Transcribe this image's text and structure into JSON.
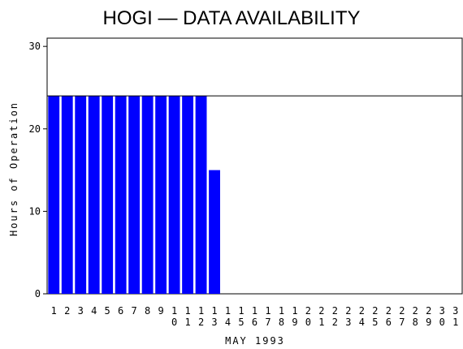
{
  "chart_data": {
    "type": "bar",
    "title": "HOGI — DATA AVAILABILITY",
    "x_label": "MAY 1993",
    "y_label": "Hours of Operation",
    "categories": [
      "1",
      "2",
      "3",
      "4",
      "5",
      "6",
      "7",
      "8",
      "9",
      "10",
      "11",
      "12",
      "13",
      "14",
      "15",
      "16",
      "17",
      "18",
      "19",
      "20",
      "21",
      "22",
      "23",
      "24",
      "25",
      "26",
      "27",
      "28",
      "29",
      "30",
      "31"
    ],
    "values": [
      24,
      24,
      24,
      24,
      24,
      24,
      24,
      24,
      24,
      24,
      24,
      24,
      15,
      null,
      null,
      null,
      null,
      null,
      null,
      null,
      null,
      null,
      null,
      null,
      null,
      null,
      null,
      null,
      null,
      null,
      null
    ],
    "color": "#0000ff",
    "ylim": [
      0,
      31
    ],
    "yticks": [
      0,
      10,
      20,
      30
    ],
    "reference_line": 24
  }
}
